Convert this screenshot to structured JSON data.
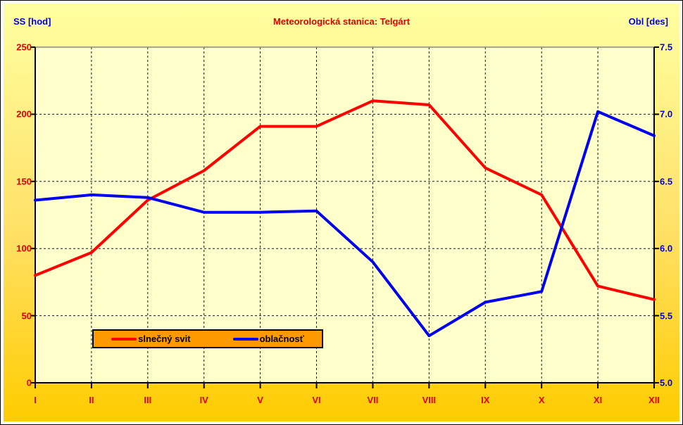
{
  "header": {
    "title": "Meteorologická stanica: Telgárt",
    "left_axis_header": "SS [hod]",
    "right_axis_header": "Obl [des]"
  },
  "chart_data": {
    "type": "line",
    "title": "Meteorologická stanica: Telgárt",
    "categories": [
      "I",
      "II",
      "III",
      "IV",
      "V",
      "VI",
      "VII",
      "VIII",
      "IX",
      "X",
      "XI",
      "XII"
    ],
    "series": [
      {
        "name": "slnečný svit",
        "axis": "left",
        "color": "#ff0000",
        "values": [
          80,
          97,
          136,
          158,
          191,
          191,
          210,
          207,
          160,
          140,
          72,
          62
        ]
      },
      {
        "name": "oblačnosť",
        "axis": "right",
        "color": "#0000ee",
        "values": [
          6.36,
          6.4,
          6.38,
          6.27,
          6.27,
          6.28,
          5.9,
          5.35,
          5.6,
          5.68,
          7.02,
          6.84
        ]
      }
    ],
    "left_axis": {
      "label": "SS [hod]",
      "min": 0,
      "max": 250,
      "step": 50,
      "ticks": [
        "250",
        "200",
        "150",
        "100",
        "50",
        "0"
      ]
    },
    "right_axis": {
      "label": "Obl [des]",
      "min": 5.0,
      "max": 7.5,
      "step": 0.5,
      "ticks": [
        "7.5",
        "7.0",
        "6.5",
        "6.0",
        "5.5",
        "5.0"
      ]
    },
    "grid": true,
    "legend_position": "inside-bottom-left"
  },
  "colors": {
    "red_text": "#e00000",
    "blue_text": "#0000e0",
    "red_line": "#ff0000",
    "blue_line": "#0000ee",
    "plot_bg": "#ffffcc",
    "bg_top": "#ffffa2",
    "bg_bottom": "#ffcc00",
    "legend_bg": "#ff9900",
    "gridline": "#1a1a1a",
    "plot_top_border": "#888888"
  }
}
